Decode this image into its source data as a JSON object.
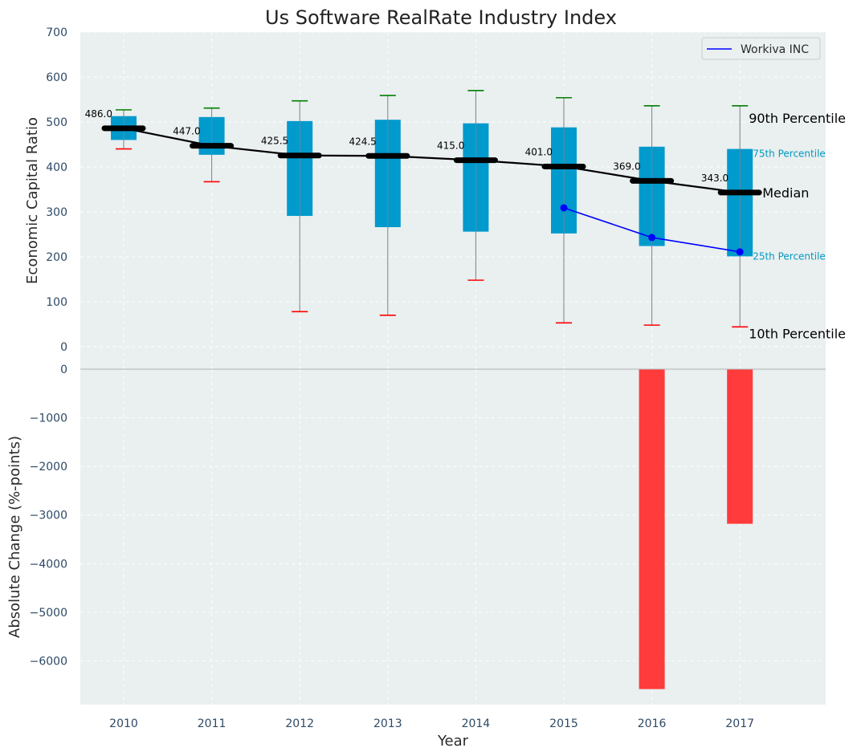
{
  "chart_data": [
    {
      "type": "box",
      "title": "Us Software RealRate Industry Index",
      "ylabel": "Economic Capital Ratio",
      "ylim": [
        0,
        700
      ],
      "yticks": [
        "0",
        "100",
        "200",
        "300",
        "400",
        "500",
        "600",
        "700"
      ],
      "grid": true,
      "legend_position": "top-right",
      "categories": [
        "2010",
        "2011",
        "2012",
        "2013",
        "2014",
        "2015",
        "2016",
        "2017"
      ],
      "p10": [
        440,
        367,
        78,
        70,
        148,
        53,
        48,
        44
      ],
      "p25": [
        460,
        427,
        291,
        266,
        256,
        252,
        224,
        201
      ],
      "median": [
        486,
        447,
        425.5,
        424.5,
        415,
        401,
        369,
        343
      ],
      "p75": [
        513,
        511,
        502,
        505,
        497,
        488,
        445,
        440
      ],
      "p90": [
        527,
        531,
        547,
        559,
        570,
        554,
        536,
        536
      ],
      "median_labels": [
        "486.0",
        "447.0",
        "425.5",
        "424.5",
        "415.0",
        "401.0",
        "369.0",
        "343.0"
      ],
      "series": [
        {
          "name": "Workiva INC",
          "x": [
            "2015",
            "2016",
            "2017"
          ],
          "values": [
            309,
            243,
            211
          ],
          "color": "#0000ff"
        }
      ],
      "annotations": {
        "p90": "90th Percentile",
        "p75": "75th Percentile",
        "median": "Median",
        "p25": "25th Percentile",
        "p10": "10th Percentile"
      },
      "colors": {
        "box": "#009acd",
        "median": "#000000",
        "p90_cap": "#008000",
        "p10_cap": "#ff0000",
        "whisker": "#808080",
        "annotation_blue": "#0099c0",
        "plot_bg": "#eaeff0"
      }
    },
    {
      "type": "bar",
      "ylabel": "Absolute Change (%-points)",
      "xlabel": "Year",
      "ylim": [
        -6900,
        0
      ],
      "yticks": [
        "0",
        "−1000",
        "−2000",
        "−3000",
        "−4000",
        "−5000",
        "−6000"
      ],
      "grid": true,
      "categories": [
        "2010",
        "2011",
        "2012",
        "2013",
        "2014",
        "2015",
        "2016",
        "2017"
      ],
      "values": [
        0,
        0,
        0,
        0,
        0,
        0,
        -6580,
        -3180
      ],
      "bar_color": "#ff3b3b"
    }
  ]
}
